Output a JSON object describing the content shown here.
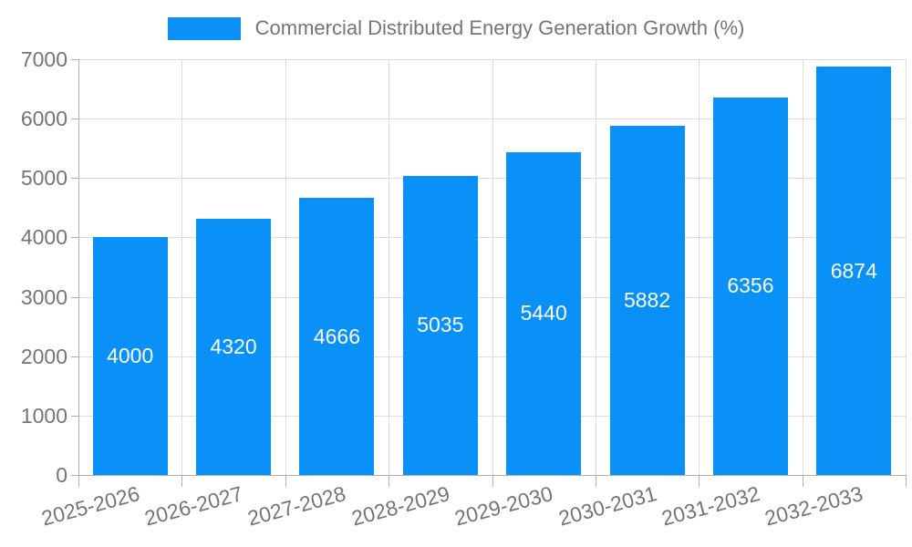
{
  "chart_data": {
    "type": "bar",
    "title": "Commercial Distributed Energy Generation Growth (%)",
    "categories": [
      "2025-2026",
      "2026-2027",
      "2027-2028",
      "2028-2029",
      "2029-2030",
      "2030-2031",
      "2031-2032",
      "2032-2033"
    ],
    "values": [
      4000,
      4320,
      4666,
      5035,
      5440,
      5882,
      6356,
      6874
    ],
    "xlabel": "",
    "ylabel": "",
    "ylim": [
      0,
      7000
    ],
    "yticks": [
      0,
      1000,
      2000,
      3000,
      4000,
      5000,
      6000,
      7000
    ],
    "grid": "on",
    "legend_position": "top",
    "colors": {
      "bar": "#0991f7",
      "value_label": "#ffffff",
      "axis_text": "#757575",
      "grid_line": "#dcdcdc",
      "axis_line": "#b0b0b0",
      "background": "#ffffff"
    }
  }
}
